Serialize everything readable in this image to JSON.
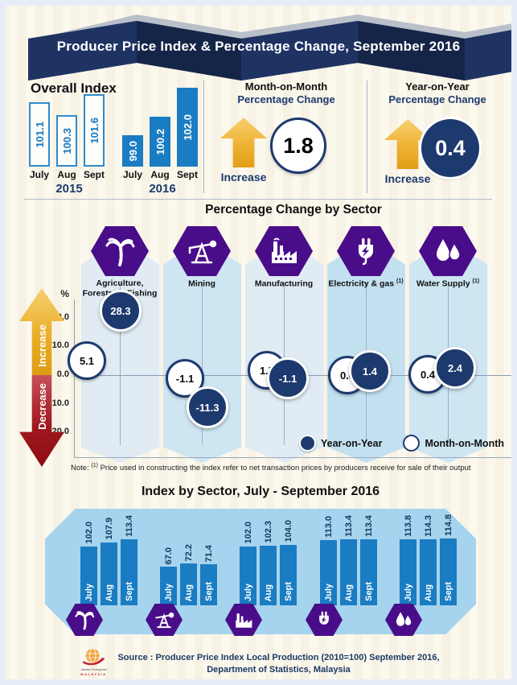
{
  "header": {
    "title": "Producer Price Index & Percentage Change, September 2016"
  },
  "overall_index": {
    "title": "Overall Index",
    "groups": [
      {
        "year": "2015",
        "style": "outline",
        "bars": [
          {
            "month": "July",
            "value": "101.1"
          },
          {
            "month": "Aug",
            "value": "100.3"
          },
          {
            "month": "Sept",
            "value": "101.6"
          }
        ]
      },
      {
        "year": "2016",
        "style": "solid",
        "bars": [
          {
            "month": "July",
            "value": "99.0"
          },
          {
            "month": "Aug",
            "value": "100.2"
          },
          {
            "month": "Sept",
            "value": "102.0"
          }
        ]
      }
    ]
  },
  "mom": {
    "label1": "Month-on-Month",
    "label2": "Percentage Change",
    "value": "1.8",
    "direction": "Increase"
  },
  "yoy": {
    "label1": "Year-on-Year",
    "label2": "Percentage Change",
    "value": "0.4",
    "direction": "Increase"
  },
  "sector_change": {
    "title": "Percentage Change by Sector",
    "unit": "%",
    "ticks": [
      "20.0",
      "10.0",
      "0.0",
      "-10.0",
      "-20.0"
    ],
    "increase": "Increase",
    "decrease": "Decrease",
    "sectors": [
      {
        "name": "Agriculture, Forestry & Fishing",
        "icon": "palm-tree-icon",
        "yoy": "28.3",
        "mom": "5.1"
      },
      {
        "name": "Mining",
        "icon": "oil-derrick-icon",
        "yoy": "-11.3",
        "mom": "-1.1"
      },
      {
        "name": "Manufacturing",
        "icon": "factory-icon",
        "yoy": "-1.1",
        "mom": "1.7"
      },
      {
        "name": "Electricity & gas",
        "note_ref": "(1)",
        "icon": "electric-plug-icon",
        "yoy": "1.4",
        "mom": "0.0"
      },
      {
        "name": "Water Supply",
        "note_ref": "(1)",
        "icon": "water-drops-icon",
        "yoy": "2.4",
        "mom": "0.4"
      }
    ],
    "legend": {
      "yoy": "Year-on-Year",
      "mom": "Month-on-Month"
    },
    "note_prefix": "Note:",
    "note_ref": "(1)",
    "note_text": "Price used in constructing the index refer to net transaction prices by producers receive for sale of their output"
  },
  "index_by_sector": {
    "title": "Index by Sector, July - September 2016",
    "groups": [
      {
        "icon": "palm-tree-icon",
        "bars": [
          {
            "month": "July",
            "value": "102.0"
          },
          {
            "month": "Aug",
            "value": "107.9"
          },
          {
            "month": "Sept",
            "value": "113.4"
          }
        ]
      },
      {
        "icon": "oil-derrick-icon",
        "bars": [
          {
            "month": "July",
            "value": "67.0"
          },
          {
            "month": "Aug",
            "value": "72.2"
          },
          {
            "month": "Sept",
            "value": "71.4"
          }
        ]
      },
      {
        "icon": "factory-icon",
        "bars": [
          {
            "month": "July",
            "value": "102.0"
          },
          {
            "month": "Aug",
            "value": "102.3"
          },
          {
            "month": "Sept",
            "value": "104.0"
          }
        ]
      },
      {
        "icon": "electric-plug-icon",
        "bars": [
          {
            "month": "July",
            "value": "113.0"
          },
          {
            "month": "Aug",
            "value": "113.4"
          },
          {
            "month": "Sept",
            "value": "113.4"
          }
        ]
      },
      {
        "icon": "water-drops-icon",
        "bars": [
          {
            "month": "July",
            "value": "113.8"
          },
          {
            "month": "Aug",
            "value": "114.3"
          },
          {
            "month": "Sept",
            "value": "114.8"
          }
        ]
      }
    ]
  },
  "footer": {
    "source_line1": "Source : Producer Price Index Local Production (2010=100) September 2016,",
    "source_line2": "Department of Statistics, Malaysia",
    "logo_icon": "statistics-malaysia-logo",
    "logo_caption": "MALAYSIA",
    "logo_caption2": "Jabatan Perangkaan"
  },
  "colors": {
    "banner_navy": "#1a2d5a",
    "bar_blue": "#1a7cc2",
    "bubble_navy": "#1d3a6e",
    "hex_purple": "#4a0d89",
    "arrow_gold": "#eeb234",
    "arrow_red": "#a21820",
    "banner_sky": "#a6d3ee",
    "bg_cream": "#f7f2e4"
  },
  "chart_data": [
    {
      "type": "bar",
      "title": "Overall Index",
      "categories": [
        "July",
        "Aug",
        "Sept"
      ],
      "series": [
        {
          "name": "2015",
          "values": [
            101.1,
            100.3,
            101.6
          ]
        },
        {
          "name": "2016",
          "values": [
            99.0,
            100.2,
            102.0
          ]
        }
      ]
    },
    {
      "type": "scatter",
      "title": "Percentage Change by Sector",
      "categories": [
        "Agriculture, Forestry & Fishing",
        "Mining",
        "Manufacturing",
        "Electricity & gas",
        "Water Supply"
      ],
      "series": [
        {
          "name": "Year-on-Year",
          "values": [
            28.3,
            -11.3,
            -1.1,
            1.4,
            2.4
          ]
        },
        {
          "name": "Month-on-Month",
          "values": [
            5.1,
            -1.1,
            1.7,
            0.0,
            0.4
          ]
        }
      ],
      "ylabel": "%",
      "ylim": [
        -20,
        30
      ],
      "yticks": [
        20.0,
        10.0,
        0.0,
        -10.0,
        -20.0
      ],
      "legend_position": "bottom-right",
      "grid": "zero-line-only"
    },
    {
      "type": "bar",
      "title": "Index by Sector, July - September 2016",
      "categories": [
        "July",
        "Aug",
        "Sept"
      ],
      "series": [
        {
          "name": "Agriculture, Forestry & Fishing",
          "values": [
            102.0,
            107.9,
            113.4
          ]
        },
        {
          "name": "Mining",
          "values": [
            67.0,
            72.2,
            71.4
          ]
        },
        {
          "name": "Manufacturing",
          "values": [
            102.0,
            102.3,
            104.0
          ]
        },
        {
          "name": "Electricity & gas",
          "values": [
            113.0,
            113.4,
            113.4
          ]
        },
        {
          "name": "Water Supply",
          "values": [
            113.8,
            114.3,
            114.8
          ]
        }
      ]
    }
  ]
}
